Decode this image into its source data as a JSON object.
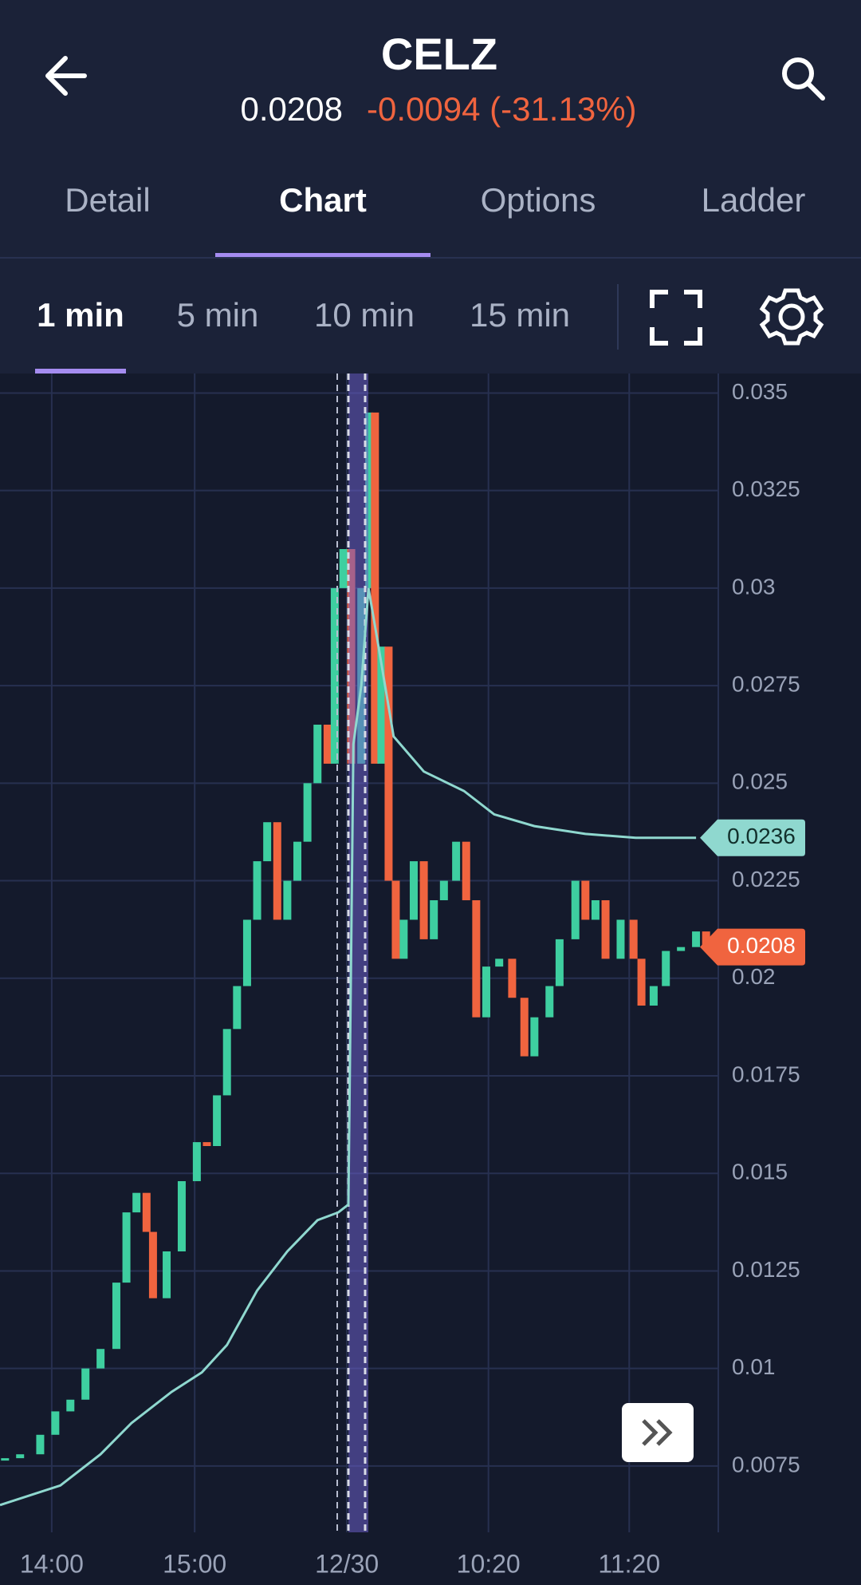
{
  "header": {
    "symbol": "CELZ",
    "price": "0.0208",
    "change": "-0.0094 (-31.13%)"
  },
  "tabs": [
    "Detail",
    "Chart",
    "Options",
    "Ladder"
  ],
  "intervals": [
    "1 min",
    "5 min",
    "10 min",
    "15 min"
  ],
  "chart_data": {
    "type": "candlestick",
    "x": [
      0.7,
      2.8,
      5.6,
      7.7,
      9.8,
      11.9,
      14.0,
      16.2,
      17.6,
      19.0,
      20.4,
      21.3,
      23.2,
      25.3,
      27.4,
      28.8,
      30.2,
      31.6,
      33.0,
      34.4,
      35.8,
      37.2,
      38.6,
      40.0,
      41.4,
      42.8,
      44.2,
      45.6,
      46.6,
      47.8,
      48.9,
      50.3,
      51.4,
      52.2,
      53.1,
      54.1,
      55.1,
      56.2,
      57.6,
      59.0,
      60.4,
      61.8,
      63.5,
      64.9,
      66.3,
      67.7,
      69.5,
      71.3,
      73.0,
      74.4,
      76.5,
      77.9,
      80.1,
      81.5,
      82.9,
      84.3,
      86.4,
      88.2,
      89.3,
      91.0,
      92.7,
      94.8,
      96.9,
      98.3
    ],
    "values": [
      0.0077,
      0.0078,
      0.0083,
      0.0089,
      0.0092,
      0.01,
      0.0105,
      0.0122,
      0.014,
      0.0145,
      0.0135,
      0.0118,
      0.013,
      0.0148,
      0.0158,
      0.0157,
      0.017,
      0.0187,
      0.0198,
      0.0215,
      0.023,
      0.024,
      0.0215,
      0.0225,
      0.0235,
      0.025,
      0.0265,
      0.0255,
      0.03,
      0.031,
      0.0255,
      0.03,
      0.0345,
      0.0255,
      0.0285,
      0.0225,
      0.0205,
      0.0215,
      0.023,
      0.021,
      0.022,
      0.0225,
      0.0235,
      0.022,
      0.019,
      0.0203,
      0.0205,
      0.0195,
      0.018,
      0.019,
      0.0198,
      0.021,
      0.0225,
      0.0215,
      0.022,
      0.0205,
      0.0215,
      0.0205,
      0.0193,
      0.0198,
      0.0207,
      0.0208,
      0.0212,
      0.0208
    ],
    "color_up": "#3ecfa0",
    "color_down": "#f0643f",
    "overlay": {
      "x": [
        0,
        8.4,
        14.0,
        18.3,
        23.9,
        28.1,
        31.6,
        35.8,
        40.0,
        44.2,
        47.1,
        48.5,
        49.2,
        50.3,
        51.3,
        52.7,
        54.8,
        59.0,
        64.6,
        68.8,
        74.4,
        81.5,
        88.5,
        96.9
      ],
      "values": [
        0.0065,
        0.007,
        0.0078,
        0.0086,
        0.0094,
        0.0099,
        0.0106,
        0.012,
        0.013,
        0.0138,
        0.014,
        0.0142,
        0.026,
        0.0275,
        0.03,
        0.0285,
        0.0262,
        0.0253,
        0.0248,
        0.0242,
        0.0239,
        0.0237,
        0.0236,
        0.0236
      ],
      "color": "#8fd8cf"
    },
    "overlay_last": 0.0236,
    "last_price": 0.0208,
    "ylim": [
      0.0058,
      0.0355
    ],
    "yticks": [
      0.035,
      0.0325,
      0.03,
      0.0275,
      0.025,
      0.0225,
      0.02,
      0.0175,
      0.015,
      0.0125,
      0.01,
      0.0075
    ],
    "xlim": [
      0,
      100
    ],
    "xticks": [
      {
        "value": 7.2,
        "label": "14:00"
      },
      {
        "value": 27.1,
        "label": "15:00"
      },
      {
        "value": 48.3,
        "label": "12/30"
      },
      {
        "value": 68.0,
        "label": "10:20"
      },
      {
        "value": 87.6,
        "label": "11:20"
      }
    ],
    "grid": true
  }
}
